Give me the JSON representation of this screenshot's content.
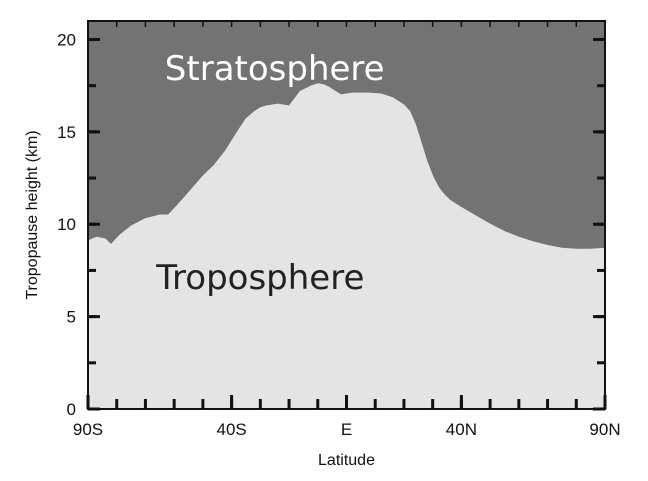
{
  "chart_data": {
    "type": "area",
    "title": "",
    "xlabel": "Latitude",
    "ylabel": "Tropopause height (km)",
    "x_ticks": [
      {
        "value": -90,
        "label": "90S"
      },
      {
        "value": -40,
        "label": "40S"
      },
      {
        "value": 0,
        "label": "E"
      },
      {
        "value": 40,
        "label": "40N"
      },
      {
        "value": 90,
        "label": "90N"
      }
    ],
    "y_ticks": [
      {
        "value": 0,
        "label": "0"
      },
      {
        "value": 5,
        "label": "5"
      },
      {
        "value": 10,
        "label": "10"
      },
      {
        "value": 15,
        "label": "15"
      },
      {
        "value": 20,
        "label": "20"
      }
    ],
    "xlim": [
      -90,
      90
    ],
    "ylim": [
      0,
      21
    ],
    "x": [
      -90,
      -87,
      -84,
      -82,
      -79,
      -75,
      -70,
      -65,
      -62,
      -59,
      -55,
      -50,
      -46,
      -42,
      -38,
      -35,
      -32,
      -31,
      -30,
      -28,
      -24,
      -20,
      -18,
      -16,
      -12,
      -10,
      -8,
      -6,
      -4,
      -2,
      0,
      2,
      4,
      8,
      12,
      16,
      20,
      22,
      24,
      26,
      28,
      30,
      32,
      34,
      36,
      38,
      40,
      45,
      50,
      55,
      60,
      65,
      70,
      75,
      80,
      85,
      90
    ],
    "series": [
      {
        "values": [
          9.1,
          9.3,
          9.2,
          8.9,
          9.4,
          9.9,
          10.3,
          10.5,
          10.5,
          11.0,
          11.7,
          12.6,
          13.2,
          14.0,
          15.0,
          15.7,
          16.1,
          16.2,
          16.3,
          16.4,
          16.5,
          16.4,
          16.8,
          17.2,
          17.5,
          17.6,
          17.55,
          17.4,
          17.2,
          17.0,
          17.05,
          17.1,
          17.1,
          17.1,
          17.05,
          16.85,
          16.45,
          16.1,
          15.4,
          14.4,
          13.4,
          12.6,
          12.0,
          11.6,
          11.3,
          11.1,
          10.9,
          10.45,
          10.0,
          9.6,
          9.3,
          9.05,
          8.85,
          8.7,
          8.65,
          8.65,
          8.7
        ]
      }
    ],
    "colors": {
      "stratosphere": "#737373",
      "troposphere": "#e4e4e4",
      "axis": "#111111"
    },
    "grid": false,
    "region_labels": {
      "upper": "Stratosphere",
      "lower": "Troposphere"
    }
  }
}
